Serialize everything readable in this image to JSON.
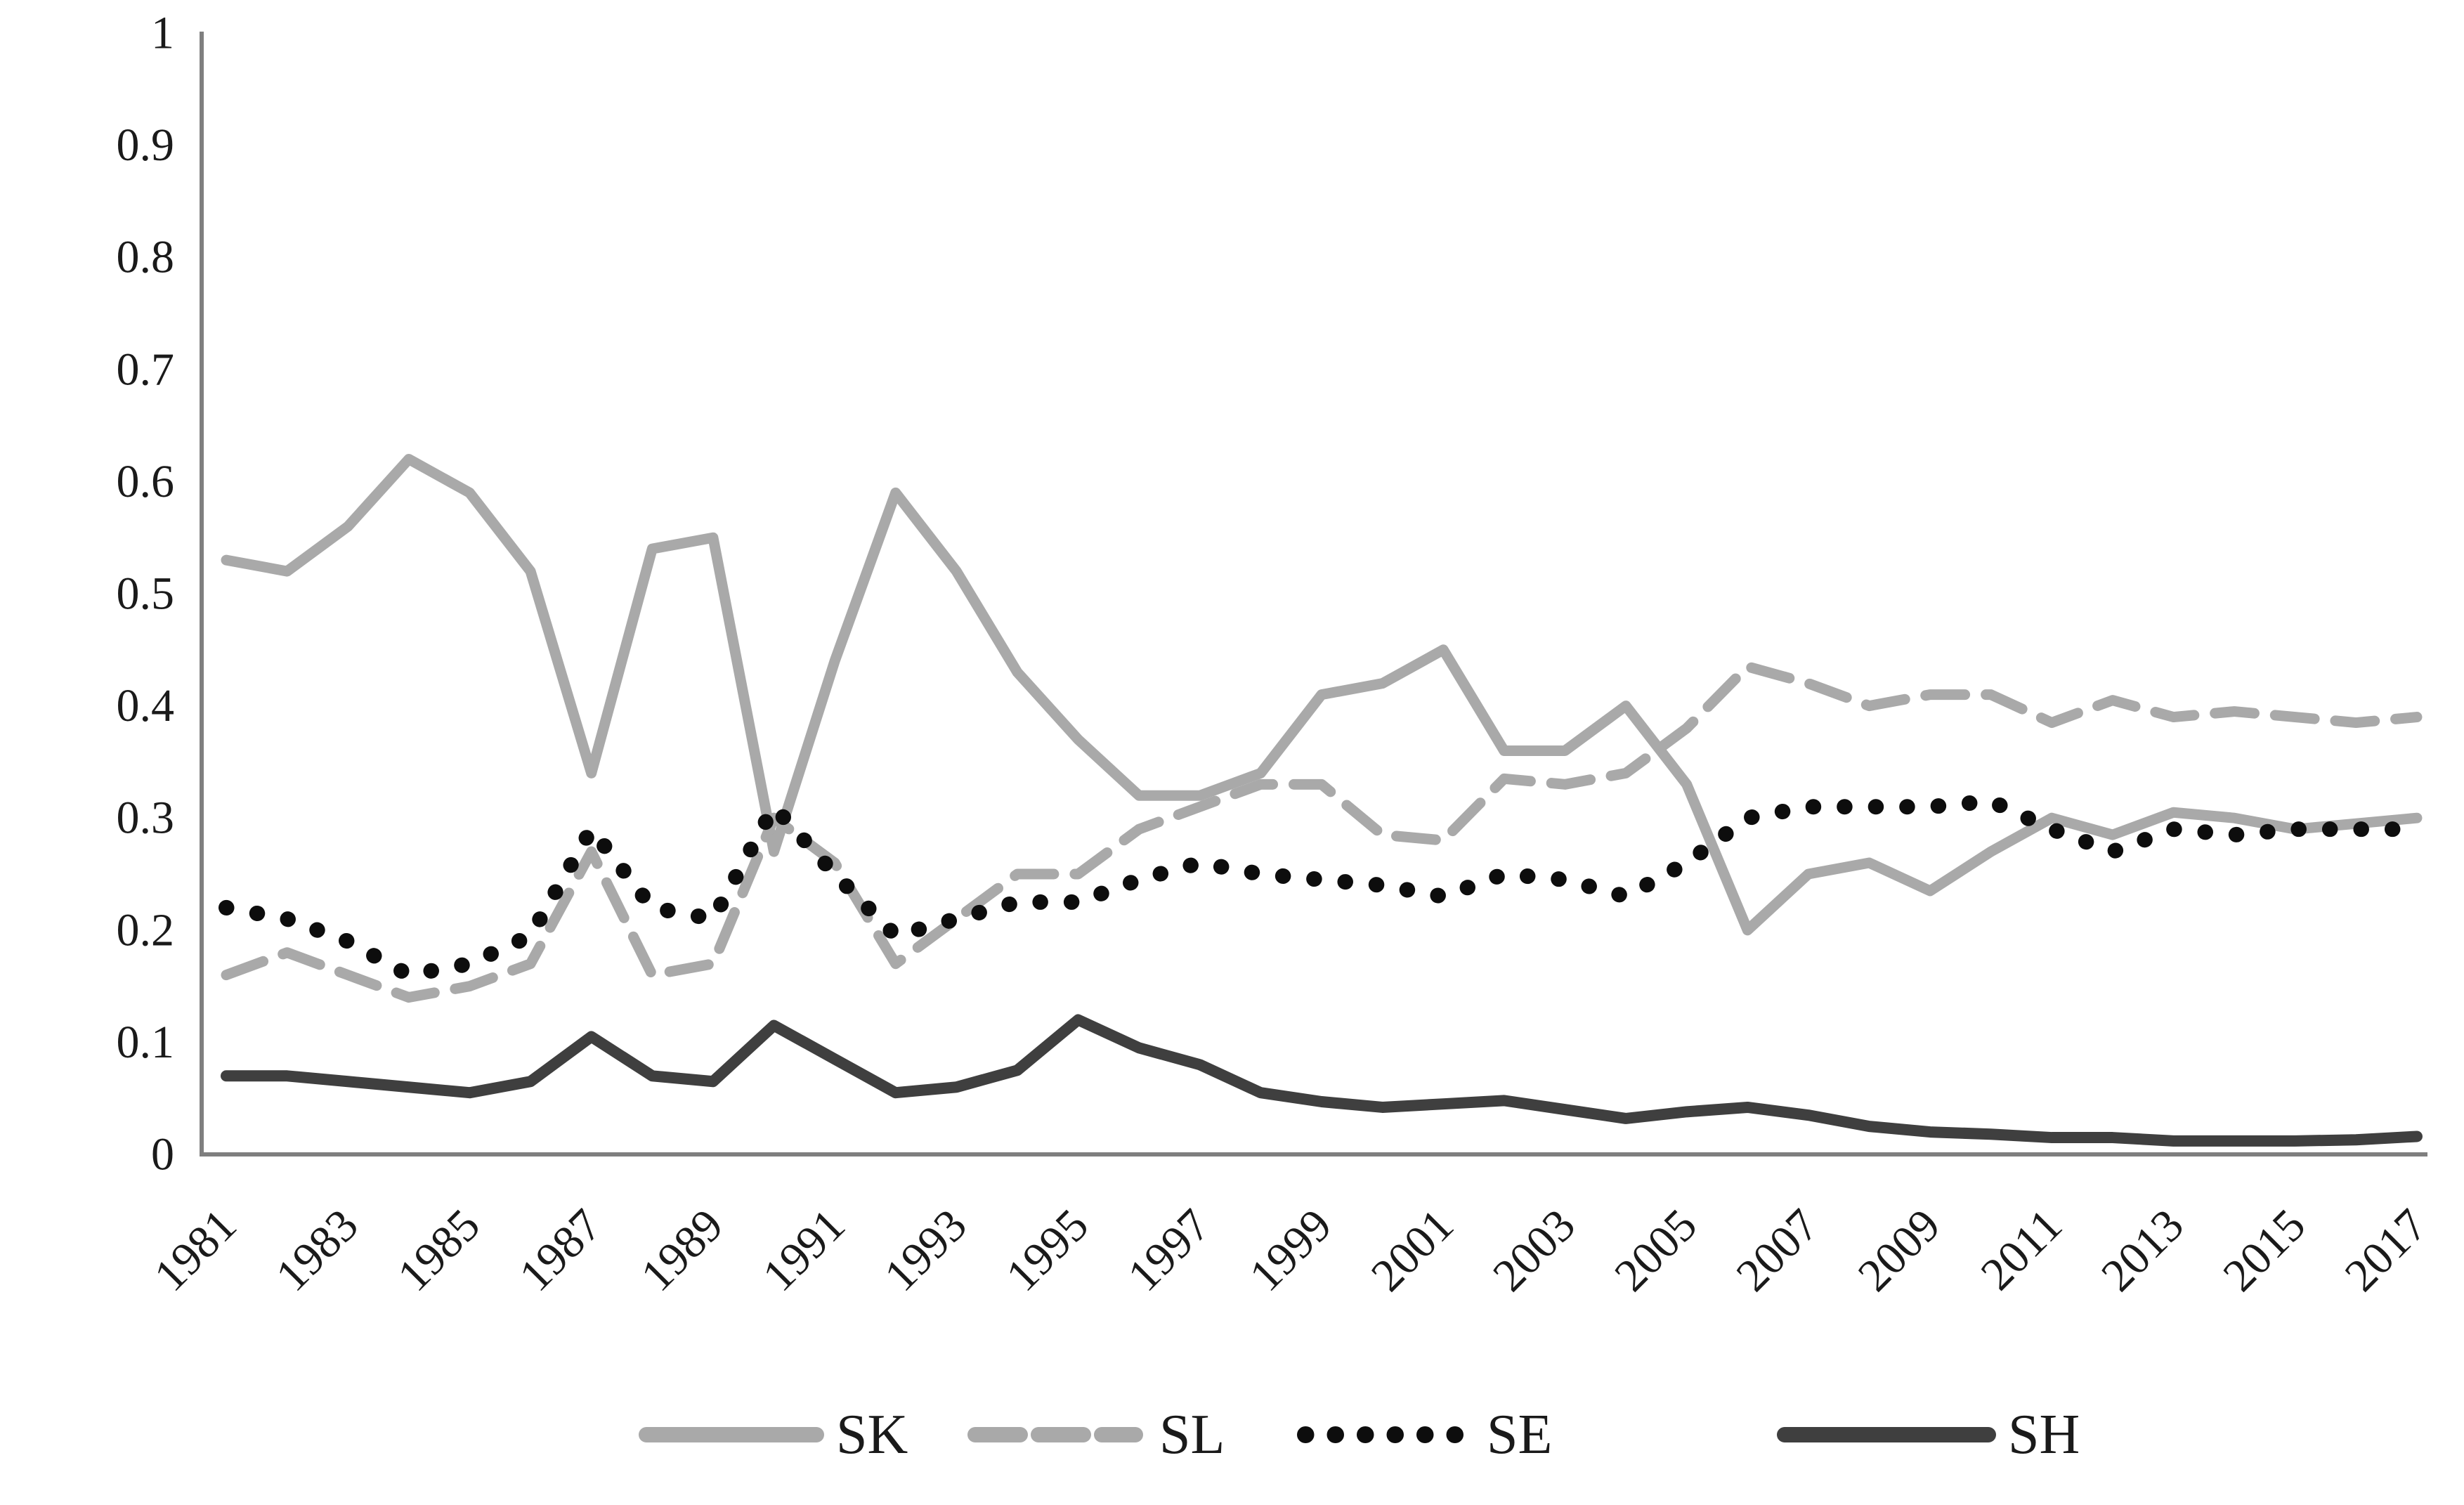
{
  "chart_data": {
    "type": "line",
    "title": "",
    "xlabel": "",
    "ylabel": "",
    "ylim": [
      0,
      1
    ],
    "grid": false,
    "legend_position": "bottom",
    "axis_color": "#7f7f7f",
    "background": "#ffffff",
    "x": [
      1981,
      1982,
      1983,
      1984,
      1985,
      1986,
      1987,
      1988,
      1989,
      1990,
      1991,
      1992,
      1993,
      1994,
      1995,
      1996,
      1997,
      1998,
      1999,
      2000,
      2001,
      2002,
      2003,
      2004,
      2005,
      2006,
      2007,
      2008,
      2009,
      2010,
      2011,
      2012,
      2013,
      2014,
      2015,
      2016,
      2017
    ],
    "x_tick_labels": [
      "1981",
      "1983",
      "1985",
      "1987",
      "1989",
      "1991",
      "1993",
      "1995",
      "1997",
      "1999",
      "2001",
      "2003",
      "2005",
      "2007",
      "2009",
      "2011",
      "2013",
      "2015",
      "2017"
    ],
    "y_ticks": [
      "0",
      "0.1",
      "0.2",
      "0.3",
      "0.4",
      "0.5",
      "0.6",
      "0.7",
      "0.8",
      "0.9",
      "1"
    ],
    "series": [
      {
        "name": "SK",
        "style": "solid",
        "color": "#a9a9a9",
        "width": 15,
        "values": [
          0.53,
          0.52,
          0.56,
          0.62,
          0.59,
          0.52,
          0.34,
          0.54,
          0.55,
          0.27,
          0.44,
          0.59,
          0.52,
          0.43,
          0.37,
          0.32,
          0.32,
          0.34,
          0.41,
          0.42,
          0.45,
          0.36,
          0.36,
          0.4,
          0.33,
          0.2,
          0.25,
          0.26,
          0.235,
          0.27,
          0.3,
          0.285,
          0.305,
          0.3,
          0.29,
          0.295,
          0.3
        ]
      },
      {
        "name": "SL",
        "style": "dashed",
        "color": "#a9a9a9",
        "width": 15,
        "values": [
          0.16,
          0.18,
          0.16,
          0.14,
          0.15,
          0.17,
          0.27,
          0.16,
          0.17,
          0.3,
          0.26,
          0.17,
          0.21,
          0.25,
          0.25,
          0.29,
          0.31,
          0.33,
          0.33,
          0.285,
          0.28,
          0.335,
          0.33,
          0.34,
          0.38,
          0.435,
          0.42,
          0.4,
          0.41,
          0.41,
          0.385,
          0.405,
          0.39,
          0.395,
          0.39,
          0.385,
          0.39
        ]
      },
      {
        "name": "SE",
        "style": "dotted",
        "color": "#0d0d0d",
        "width": 22,
        "values": [
          0.22,
          0.21,
          0.19,
          0.16,
          0.17,
          0.195,
          0.29,
          0.22,
          0.21,
          0.31,
          0.25,
          0.195,
          0.21,
          0.225,
          0.225,
          0.245,
          0.26,
          0.25,
          0.245,
          0.24,
          0.23,
          0.25,
          0.245,
          0.23,
          0.26,
          0.3,
          0.31,
          0.31,
          0.31,
          0.315,
          0.29,
          0.27,
          0.29,
          0.285,
          0.29,
          0.29,
          0.29
        ]
      },
      {
        "name": "SH",
        "style": "solid",
        "color": "#3f3f3f",
        "width": 16,
        "values": [
          0.07,
          0.07,
          0.065,
          0.06,
          0.055,
          0.065,
          0.105,
          0.07,
          0.065,
          0.115,
          0.085,
          0.055,
          0.06,
          0.075,
          0.12,
          0.095,
          0.08,
          0.055,
          0.047,
          0.042,
          0.045,
          0.048,
          0.04,
          0.032,
          0.038,
          0.042,
          0.035,
          0.025,
          0.02,
          0.018,
          0.015,
          0.015,
          0.012,
          0.012,
          0.012,
          0.013,
          0.016
        ]
      }
    ],
    "legend": {
      "items": [
        "SK",
        "SL",
        "SE",
        "SH"
      ]
    }
  }
}
